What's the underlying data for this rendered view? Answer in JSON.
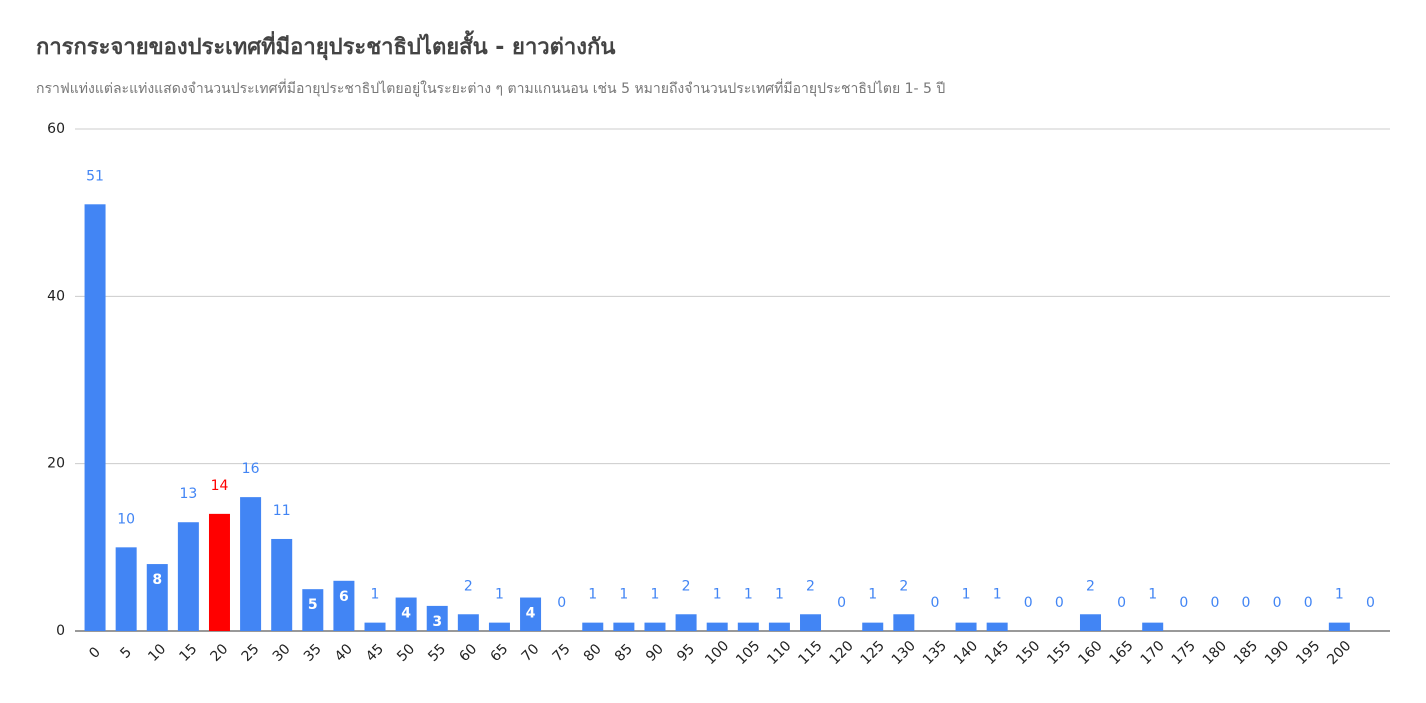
{
  "chart_data": {
    "type": "bar",
    "title": "การกระจายของประเทศที่มีอายุประชาธิปไตยสั้น - ยาวต่างกัน",
    "subtitle": "กราฟแท่งแต่ละแท่งแสดงจำนวนประเทศที่มีอายุประชาธิปไตยอยู่ในระยะต่าง ๆ ตามแกนนอน เช่น 5 หมายถึงจำนวนประเทศที่มีอายุประชาธิปไตย 1- 5 ปี",
    "categories": [
      "0",
      "5",
      "10",
      "15",
      "20",
      "25",
      "30",
      "35",
      "40",
      "45",
      "50",
      "55",
      "60",
      "65",
      "70",
      "75",
      "80",
      "85",
      "90",
      "95",
      "100",
      "105",
      "110",
      "115",
      "120",
      "125",
      "130",
      "135",
      "140",
      "145",
      "150",
      "155",
      "160",
      "165",
      "170",
      "175",
      "180",
      "185",
      "190",
      "195",
      "200",
      null
    ],
    "values": [
      51,
      10,
      8,
      13,
      14,
      16,
      11,
      5,
      6,
      1,
      4,
      3,
      2,
      1,
      4,
      0,
      1,
      1,
      1,
      2,
      1,
      1,
      1,
      2,
      0,
      1,
      2,
      0,
      1,
      1,
      0,
      0,
      2,
      0,
      1,
      0,
      0,
      0,
      0,
      0,
      1,
      0
    ],
    "colors": [
      "#4285f4",
      "#4285f4",
      "#4285f4",
      "#4285f4",
      "#ff0000",
      "#4285f4",
      "#4285f4",
      "#4285f4",
      "#4285f4",
      "#4285f4",
      "#4285f4",
      "#4285f4",
      "#4285f4",
      "#4285f4",
      "#4285f4",
      "#4285f4",
      "#4285f4",
      "#4285f4",
      "#4285f4",
      "#4285f4",
      "#4285f4",
      "#4285f4",
      "#4285f4",
      "#4285f4",
      "#4285f4",
      "#4285f4",
      "#4285f4",
      "#4285f4",
      "#4285f4",
      "#4285f4",
      "#4285f4",
      "#4285f4",
      "#4285f4",
      "#4285f4",
      "#4285f4",
      "#4285f4",
      "#4285f4",
      "#4285f4",
      "#4285f4",
      "#4285f4",
      "#4285f4",
      "#4285f4"
    ],
    "ylim": [
      0,
      60
    ],
    "yticks": [
      0,
      20,
      40,
      60
    ],
    "grid": true
  }
}
